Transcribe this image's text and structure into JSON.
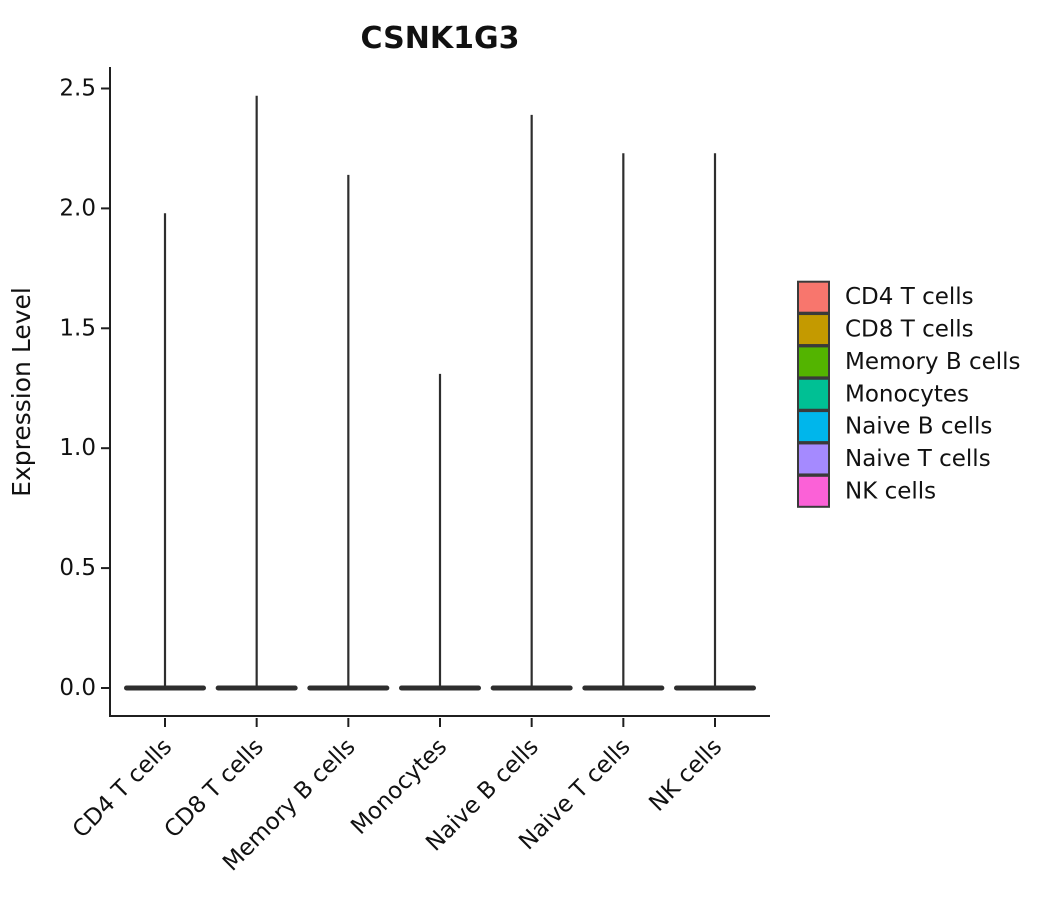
{
  "chart_data": {
    "type": "violin",
    "title": "CSNK1G3",
    "xlabel": "",
    "ylabel": "Expression Level",
    "categories": [
      "CD4 T cells",
      "CD8 T cells",
      "Memory B cells",
      "Monocytes",
      "Naive B cells",
      "Naive T cells",
      "NK cells"
    ],
    "series": [
      {
        "name": "CD4 T cells",
        "color": "#F8766D",
        "max_expression": 1.98,
        "bulk_value": 0.0
      },
      {
        "name": "CD8 T cells",
        "color": "#C49A00",
        "max_expression": 2.47,
        "bulk_value": 0.0
      },
      {
        "name": "Memory B cells",
        "color": "#53B400",
        "max_expression": 2.14,
        "bulk_value": 0.0
      },
      {
        "name": "Monocytes",
        "color": "#00C094",
        "max_expression": 1.31,
        "bulk_value": 0.0
      },
      {
        "name": "Naive B cells",
        "color": "#00B6EB",
        "max_expression": 2.39,
        "bulk_value": 0.0
      },
      {
        "name": "Naive T cells",
        "color": "#A58AFF",
        "max_expression": 2.23,
        "bulk_value": 0.0
      },
      {
        "name": "NK cells",
        "color": "#FB61D7",
        "max_expression": 2.23,
        "bulk_value": 0.0
      }
    ],
    "y_ticks": [
      "0.0",
      "0.5",
      "1.0",
      "1.5",
      "2.0",
      "2.5"
    ],
    "y_tick_values": [
      0.0,
      0.5,
      1.0,
      1.5,
      2.0,
      2.5
    ],
    "ylim": [
      -0.12,
      2.6
    ],
    "grid": false,
    "legend_position": "right",
    "x_tick_rotation": 45,
    "violin_outline_color": "#2e2e2e",
    "axis_color": "#1f1f1f"
  },
  "legend": {
    "entries": [
      {
        "label": "CD4 T cells",
        "color": "#F8766D"
      },
      {
        "label": "CD8 T cells",
        "color": "#C49A00"
      },
      {
        "label": "Memory B cells",
        "color": "#53B400"
      },
      {
        "label": "Monocytes",
        "color": "#00C094"
      },
      {
        "label": "Naive B cells",
        "color": "#00B6EB"
      },
      {
        "label": "Naive T cells",
        "color": "#A58AFF"
      },
      {
        "label": "NK cells",
        "color": "#FB61D7"
      }
    ]
  }
}
